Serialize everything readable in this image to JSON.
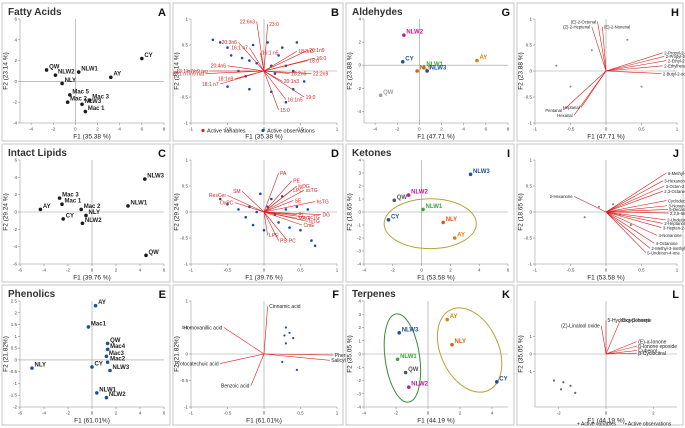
{
  "chart_data": [
    {
      "id": "A",
      "type": "scatter",
      "title": "Fatty Acids",
      "letter": "A",
      "xlabel": "F1 (35.38 %)",
      "ylabel": "F2 (23.14 %)",
      "xlim": [
        -5,
        8
      ],
      "ylim": [
        -4,
        6
      ],
      "grid": false,
      "points": [
        {
          "label": "QW",
          "x": -2.6,
          "y": 1.1,
          "color": "#1a1a1a"
        },
        {
          "label": "NLW2",
          "x": -1.8,
          "y": 0.6,
          "color": "#1a1a1a"
        },
        {
          "label": "NLY",
          "x": -1.2,
          "y": -0.2,
          "color": "#1a1a1a"
        },
        {
          "label": "NLW1",
          "x": 0.3,
          "y": 0.9,
          "color": "#1a1a1a"
        },
        {
          "label": "CY",
          "x": 6.0,
          "y": 2.2,
          "color": "#1a1a1a"
        },
        {
          "label": "AY",
          "x": 3.2,
          "y": 0.4,
          "color": "#1a1a1a"
        },
        {
          "label": "Mac 5",
          "x": -0.5,
          "y": -1.3,
          "color": "#1a1a1a"
        },
        {
          "label": "Mac 3",
          "x": 1.3,
          "y": -1.8,
          "color": "#1a1a1a"
        },
        {
          "label": "Mac 2",
          "x": -0.7,
          "y": -2.0,
          "color": "#1a1a1a"
        },
        {
          "label": "NLW3",
          "x": 0.6,
          "y": -2.2,
          "color": "#1a1a1a"
        },
        {
          "label": "Mac 1",
          "x": 0.9,
          "y": -2.9,
          "color": "#1a1a1a"
        }
      ]
    },
    {
      "id": "B",
      "type": "scatter",
      "letter": "B",
      "xlabel": "F1 (35.38 %)",
      "ylabel": "F2 (23.14 %)",
      "xlim": [
        -1,
        1
      ],
      "ylim": [
        -1,
        1
      ],
      "grid": false,
      "legend": [
        "Active variables",
        "Active observations"
      ],
      "vectors": [
        {
          "label": "22:6n3",
          "x": -0.1,
          "y": 0.95
        },
        {
          "label": "23:0",
          "x": 0.05,
          "y": 0.9
        },
        {
          "label": "20:3n6",
          "x": -0.35,
          "y": 0.55
        },
        {
          "label": "16:1 n7",
          "x": -0.2,
          "y": 0.45
        },
        {
          "label": "16:1 n5",
          "x": -0.05,
          "y": 0.35
        },
        {
          "label": "20:1n9",
          "x": 0.6,
          "y": 0.4
        },
        {
          "label": "18:3n3",
          "x": 0.45,
          "y": 0.38
        },
        {
          "label": "16:0",
          "x": 0.7,
          "y": 0.25
        },
        {
          "label": "18:0",
          "x": 0.6,
          "y": 0.2
        },
        {
          "label": "20:4n6",
          "x": -0.5,
          "y": 0.1
        },
        {
          "label": "18:1 n7/n9 iso",
          "x": -0.75,
          "y": 0.0
        },
        {
          "label": "18:1 n7/n9 nat",
          "x": -0.8,
          "y": -0.05
        },
        {
          "label": "18:1 n7",
          "x": -0.6,
          "y": -0.25
        },
        {
          "label": "18:1n9",
          "x": -0.4,
          "y": -0.15
        },
        {
          "label": "18:2n6",
          "x": 0.35,
          "y": -0.05
        },
        {
          "label": "20:1n3",
          "x": 0.25,
          "y": -0.2
        },
        {
          "label": "22:2n9",
          "x": 0.65,
          "y": -0.05
        },
        {
          "label": "16:1n5",
          "x": 0.3,
          "y": -0.55
        },
        {
          "label": "19:0",
          "x": 0.55,
          "y": -0.5
        },
        {
          "label": "15:0",
          "x": 0.2,
          "y": -0.75
        }
      ]
    },
    {
      "id": "G",
      "type": "scatter",
      "title": "Aldehydes",
      "letter": "G",
      "xlabel": "F1 (47.71 %)",
      "ylabel": "F2 (23.88 %)",
      "xlim": [
        -5,
        8
      ],
      "ylim": [
        -5,
        4
      ],
      "grid": false,
      "points": [
        {
          "label": "NLW2",
          "x": -1.4,
          "y": 2.6,
          "color": "#c2188f"
        },
        {
          "label": "AY",
          "x": 5.2,
          "y": 0.4,
          "color": "#d4820a"
        },
        {
          "label": "CY",
          "x": -1.5,
          "y": 0.3,
          "color": "#1f4e9c"
        },
        {
          "label": "NLW1",
          "x": 0.4,
          "y": -0.2,
          "color": "#3aa73a"
        },
        {
          "label": "NLY",
          "x": -0.2,
          "y": -0.5,
          "color": "#e05a10"
        },
        {
          "label": "NLW3",
          "x": 0.7,
          "y": -0.5,
          "color": "#1f4e9c"
        },
        {
          "label": "QW",
          "x": -3.5,
          "y": -2.6,
          "color": "#a0a0a0"
        }
      ]
    },
    {
      "id": "H",
      "type": "scatter",
      "letter": "H",
      "xlabel": "F1 (47.71 %)",
      "ylabel": "F2 (23.88 %)",
      "xlim": [
        -1,
        1
      ],
      "ylim": [
        -1,
        1
      ],
      "grid": false,
      "vectors": [
        {
          "label": "(E)-2-Octenal",
          "x": -0.12,
          "y": 0.95
        },
        {
          "label": "(Z)-2-Heptenal",
          "x": -0.2,
          "y": 0.85
        },
        {
          "label": "(E)-2-Nonenal",
          "x": -0.05,
          "y": 0.85
        },
        {
          "label": "2-Propyl-2-Heptenal (isomer)",
          "x": 0.8,
          "y": 0.35
        },
        {
          "label": "2-Propyl-2-Heptenal (isomer)",
          "x": 0.82,
          "y": 0.28
        },
        {
          "label": "2-Ethyl-2-pentenal",
          "x": 0.85,
          "y": 0.2
        },
        {
          "label": "2-Ethylhexanal",
          "x": 0.8,
          "y": 0.1
        },
        {
          "label": "2-Butyl-2-octenal",
          "x": 0.78,
          "y": -0.05
        },
        {
          "label": "Heptanal",
          "x": -0.35,
          "y": -0.7
        },
        {
          "label": "Pentanal",
          "x": -0.6,
          "y": -0.75
        },
        {
          "label": "Hexanal",
          "x": -0.45,
          "y": -0.85
        }
      ]
    },
    {
      "id": "C",
      "type": "scatter",
      "title": "Intact Lipids",
      "letter": "C",
      "xlabel": "F1 (39.76 %)",
      "ylabel": "F2 (29.24 %)",
      "xlim": [
        -6,
        6
      ],
      "ylim": [
        -6,
        6
      ],
      "grid": false,
      "points": [
        {
          "label": "NLW3",
          "x": 4.4,
          "y": 3.8,
          "color": "#1a1a1a"
        },
        {
          "label": "NLW1",
          "x": 3.0,
          "y": 0.7,
          "color": "#1a1a1a"
        },
        {
          "label": "Mac 3",
          "x": -2.7,
          "y": 1.6,
          "color": "#1a1a1a"
        },
        {
          "label": "Mac 1",
          "x": -2.5,
          "y": 0.9,
          "color": "#1a1a1a"
        },
        {
          "label": "AY",
          "x": -4.3,
          "y": 0.3,
          "color": "#1a1a1a"
        },
        {
          "label": "Mac 2",
          "x": -0.9,
          "y": 0.3,
          "color": "#1a1a1a"
        },
        {
          "label": "NLY",
          "x": -0.5,
          "y": -0.4,
          "color": "#1a1a1a"
        },
        {
          "label": "CY",
          "x": -2.4,
          "y": -0.8,
          "color": "#1a1a1a"
        },
        {
          "label": "NLW2",
          "x": -0.8,
          "y": -1.3,
          "color": "#1a1a1a"
        },
        {
          "label": "QW",
          "x": 4.5,
          "y": -5.0,
          "color": "#1a1a1a"
        }
      ]
    },
    {
      "id": "D",
      "type": "scatter",
      "letter": "D",
      "xlabel": "F1 (39.76 %)",
      "ylabel": "F2 (29.24 %)",
      "xlim": [
        -1,
        1
      ],
      "ylim": [
        -1,
        1
      ],
      "grid": false,
      "vectors": [
        {
          "label": "PA",
          "x": 0.2,
          "y": 0.75
        },
        {
          "label": "PE",
          "x": 0.38,
          "y": 0.6
        },
        {
          "label": "loDG",
          "x": 0.45,
          "y": 0.5
        },
        {
          "label": "LPC",
          "x": 0.38,
          "y": 0.42
        },
        {
          "label": "ssTG",
          "x": 0.55,
          "y": 0.42
        },
        {
          "label": "ResCer",
          "x": -0.5,
          "y": 0.32
        },
        {
          "label": "SM",
          "x": -0.3,
          "y": 0.4
        },
        {
          "label": "OxPC",
          "x": -0.4,
          "y": 0.18
        },
        {
          "label": "SE",
          "x": 0.4,
          "y": 0.22
        },
        {
          "label": "hsTG",
          "x": 0.7,
          "y": 0.2
        },
        {
          "label": "DG",
          "x": 0.78,
          "y": -0.05
        },
        {
          "label": "PI",
          "x": 0.45,
          "y": -0.05
        },
        {
          "label": "scTG",
          "x": 0.58,
          "y": -0.1
        },
        {
          "label": "MAG",
          "x": 0.45,
          "y": -0.12
        },
        {
          "label": "lsTG",
          "x": 0.6,
          "y": -0.18
        },
        {
          "label": "CmE",
          "x": 0.52,
          "y": -0.25
        },
        {
          "label": "LPE",
          "x": 0.05,
          "y": -0.45
        },
        {
          "label": "PS",
          "x": 0.2,
          "y": -0.55
        },
        {
          "label": "PC",
          "x": 0.32,
          "y": -0.55
        }
      ]
    },
    {
      "id": "I",
      "type": "scatter",
      "title": "Ketones",
      "letter": "I",
      "xlabel": "F1 (53.58 %)",
      "ylabel": "F2 (18.65 %)",
      "xlim": [
        -4,
        6
      ],
      "ylim": [
        -4,
        4
      ],
      "grid": false,
      "points": [
        {
          "label": "NLW3",
          "x": 3.4,
          "y": 2.9,
          "color": "#1f4e9c"
        },
        {
          "label": "NLW2",
          "x": -0.9,
          "y": 1.3,
          "color": "#c2188f"
        },
        {
          "label": "QW",
          "x": -1.9,
          "y": 0.9,
          "color": "#555555"
        },
        {
          "label": "NLW1",
          "x": 0.1,
          "y": 0.2,
          "color": "#3aa73a"
        },
        {
          "label": "CY",
          "x": -2.3,
          "y": -0.6,
          "color": "#1f4e9c"
        },
        {
          "label": "NLY",
          "x": 1.5,
          "y": -0.8,
          "color": "#e05a10"
        },
        {
          "label": "AY",
          "x": 2.3,
          "y": -2.0,
          "color": "#d4820a"
        }
      ]
    },
    {
      "id": "J",
      "type": "scatter",
      "letter": "J",
      "xlabel": "F1 (53.58 %)",
      "ylabel": "F2 (18.65 %)",
      "xlim": [
        -1,
        1
      ],
      "ylim": [
        -1,
        1
      ],
      "grid": false,
      "vectors": [
        {
          "label": "6-Methyl-5-hepten-2-one",
          "x": 0.85,
          "y": 0.75
        },
        {
          "label": "3-Hexanone",
          "x": 0.8,
          "y": 0.6
        },
        {
          "label": "3-Octen-2-one",
          "x": 0.82,
          "y": 0.5
        },
        {
          "label": "2,3-Octanedione",
          "x": 0.8,
          "y": 0.4
        },
        {
          "label": "2-Hexanone",
          "x": -0.45,
          "y": 0.3
        },
        {
          "label": "Cyclodecanone",
          "x": 0.85,
          "y": 0.22
        },
        {
          "label": "3-Nonen-2-one",
          "x": 0.86,
          "y": 0.12
        },
        {
          "label": "5-Decanone",
          "x": 0.87,
          "y": 0.05
        },
        {
          "label": "2,2,5-trimethylcyclopentanone",
          "x": 0.88,
          "y": -0.02
        },
        {
          "label": "2-Undecanone",
          "x": 0.84,
          "y": -0.15
        },
        {
          "label": "2-Heptanone",
          "x": 0.8,
          "y": -0.22
        },
        {
          "label": "3-Hepten-2-one",
          "x": 0.78,
          "y": -0.3
        },
        {
          "label": "4-Nonanone",
          "x": 0.72,
          "y": -0.45
        },
        {
          "label": "4-Octanone",
          "x": 0.68,
          "y": -0.6
        },
        {
          "label": "2-Methyl-3-methylenecyclopentanone",
          "x": 0.62,
          "y": -0.7
        },
        {
          "label": "5-Undecen-4-one",
          "x": 0.56,
          "y": -0.78
        }
      ]
    },
    {
      "id": "E",
      "type": "scatter",
      "title": "Phenolics",
      "letter": "E",
      "xlabel": "F1 (61.01%)",
      "ylabel": "F2 (21.82%)",
      "xlim": [
        -6,
        6
      ],
      "ylim": [
        -2,
        2.5
      ],
      "grid": false,
      "xticks": [
        -6,
        -4,
        -2,
        0,
        2,
        4,
        6
      ],
      "yticks": [
        -2,
        -1.5,
        -1,
        -0.5,
        0,
        0.5,
        1,
        1.5,
        2,
        2.5
      ],
      "points": [
        {
          "label": "AY",
          "x": 0.3,
          "y": 2.3,
          "color": "#1f4e9c"
        },
        {
          "label": "Mac1",
          "x": -0.3,
          "y": 1.4,
          "color": "#1f4e9c"
        },
        {
          "label": "QW",
          "x": 1.3,
          "y": 0.7,
          "color": "#1f4e9c"
        },
        {
          "label": "Mac4",
          "x": 1.3,
          "y": 0.45,
          "color": "#1f4e9c"
        },
        {
          "label": "Mac3",
          "x": 1.2,
          "y": 0.15,
          "color": "#1f4e9c"
        },
        {
          "label": "Mac2",
          "x": 1.3,
          "y": -0.1,
          "color": "#1f4e9c"
        },
        {
          "label": "CY",
          "x": 0.0,
          "y": -0.3,
          "color": "#1f4e9c"
        },
        {
          "label": "NLW3",
          "x": 1.5,
          "y": -0.45,
          "color": "#1f4e9c"
        },
        {
          "label": "NLY",
          "x": -5.0,
          "y": -0.35,
          "color": "#1f4e9c"
        },
        {
          "label": "NLW1",
          "x": 0.4,
          "y": -1.4,
          "color": "#1f4e9c"
        },
        {
          "label": "NLW2",
          "x": 1.2,
          "y": -1.6,
          "color": "#1f4e9c"
        }
      ]
    },
    {
      "id": "F",
      "type": "scatter",
      "letter": "F",
      "xlabel": "F1 (61.01%)",
      "ylabel": "F2 (21.82%)",
      "xlim": [
        -1,
        1
      ],
      "ylim": [
        -1,
        1
      ],
      "grid": false,
      "vectors": [
        {
          "label": "Cinnamic acid",
          "x": 0.05,
          "y": 0.9
        },
        {
          "label": "Homovanillic acid",
          "x": -0.55,
          "y": 0.5
        },
        {
          "label": "Phenol",
          "x": 0.95,
          "y": -0.02
        },
        {
          "label": "Salicylic acid",
          "x": 0.9,
          "y": -0.12
        },
        {
          "label": "Protocatechuic acid",
          "x": -0.6,
          "y": -0.18
        },
        {
          "label": "Benzoic acid",
          "x": -0.18,
          "y": -0.6
        }
      ]
    },
    {
      "id": "K",
      "type": "scatter",
      "title": "Terpenes",
      "letter": "K",
      "xlabel": "F1 (44.19 %)",
      "ylabel": "F2 (35.05 %)",
      "xlim": [
        -4,
        5
      ],
      "ylim": [
        -4,
        4
      ],
      "grid": false,
      "points": [
        {
          "label": "NLW3",
          "x": -1.8,
          "y": 1.6,
          "color": "#1f4e9c"
        },
        {
          "label": "AY",
          "x": 1.2,
          "y": 2.6,
          "color": "#d4820a"
        },
        {
          "label": "NLY",
          "x": 1.5,
          "y": 0.7,
          "color": "#e05a10"
        },
        {
          "label": "NLW1",
          "x": -1.9,
          "y": -0.4,
          "color": "#3aa73a"
        },
        {
          "label": "QW",
          "x": -1.4,
          "y": -1.4,
          "color": "#555555"
        },
        {
          "label": "NLW2",
          "x": -1.2,
          "y": -2.5,
          "color": "#c2188f"
        },
        {
          "label": "CY",
          "x": 4.3,
          "y": -2.1,
          "color": "#1f4e9c"
        }
      ]
    },
    {
      "id": "L",
      "type": "scatter",
      "letter": "L",
      "xlabel": "F1 (44.19 %)",
      "ylabel": "F2 (35.05 %)",
      "xlim": [
        -3,
        3
      ],
      "ylim": [
        -3,
        3
      ],
      "grid": false,
      "xticks": [
        -2,
        0,
        2
      ],
      "yticks": [
        -1,
        0,
        1
      ],
      "legend": [
        "Active variables",
        "Active observations"
      ],
      "vectors": [
        {
          "label": "5-Hydroxy-β-ionone",
          "x": 0.0,
          "y": 1.9
        },
        {
          "label": "(Z)-Linalool oxide",
          "x": -0.2,
          "y": 1.6
        },
        {
          "label": "Dicyclohexyl",
          "x": 0.6,
          "y": 1.9
        },
        {
          "label": "(E)-α-Ionone",
          "x": 1.3,
          "y": 0.7
        },
        {
          "label": "β-Ionone epoxide",
          "x": 1.3,
          "y": 0.45
        },
        {
          "label": "Cubenol",
          "x": 1.3,
          "y": 0.2
        },
        {
          "label": "β-Cyclocitral",
          "x": 1.3,
          "y": 0.05
        }
      ]
    }
  ],
  "legend_markers": {
    "variables": "+",
    "observations": "•"
  }
}
